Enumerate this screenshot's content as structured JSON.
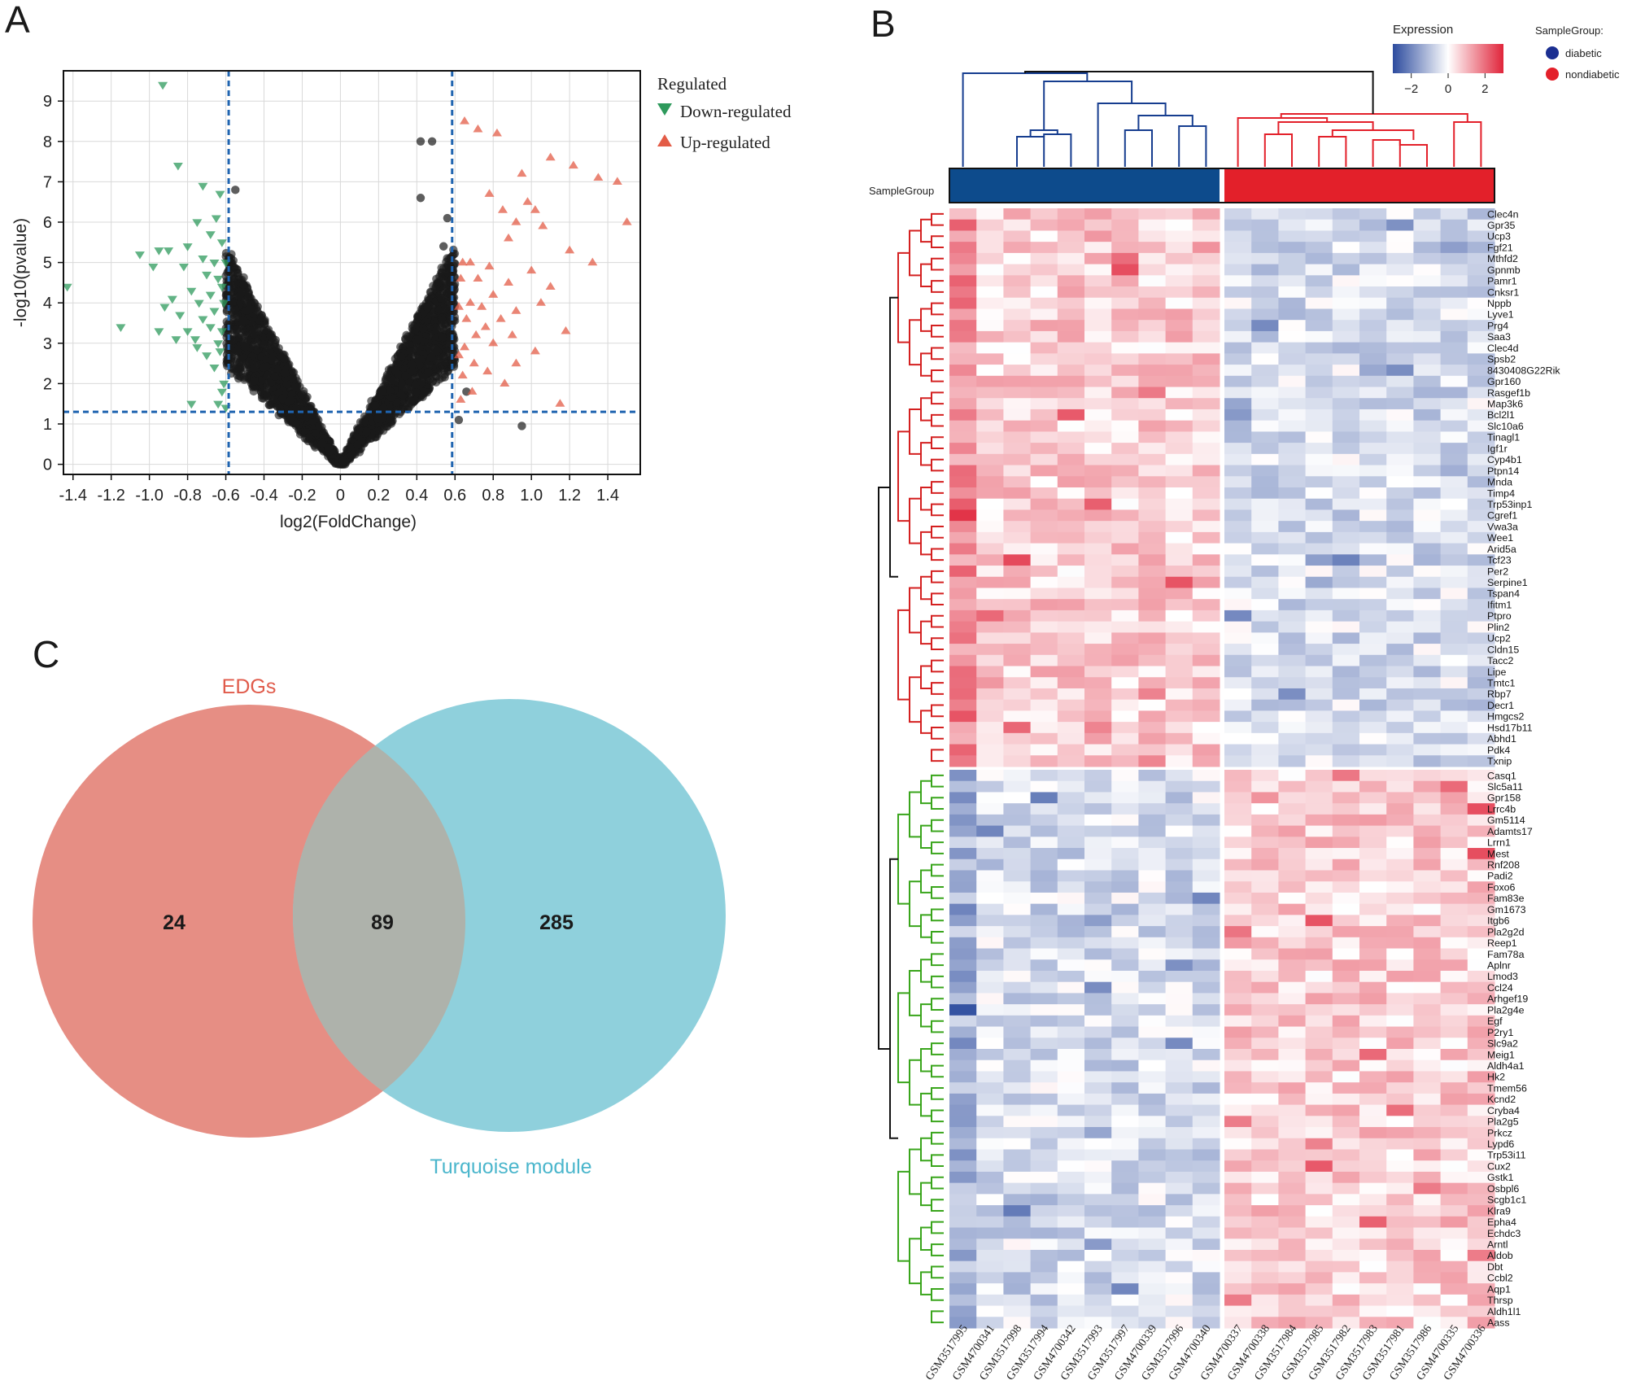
{
  "panels": {
    "a": "A",
    "b": "B",
    "c": "C"
  },
  "colors": {
    "down": "#2e9a5c",
    "up": "#e35c47",
    "ns": "#1a1a1a",
    "threshold": "#1f64b0",
    "diabetic": "#1b2f91",
    "nondiabetic": "#e3202a",
    "venn_edg": "#e68e84",
    "venn_turq": "#8fd0dc",
    "venn_overlap": "#aeb2ab",
    "venn_edg_label": "#e05b4b",
    "venn_turq_label": "#4bb6cc",
    "up_dendro": "#d42020",
    "down_dendro": "#39a51b"
  },
  "volcano": {
    "chart_data": {
      "type": "scatter",
      "xlabel": "log2(FoldChange)",
      "ylabel": "-log10(pvalue)",
      "xlim": [
        -1.45,
        1.57
      ],
      "ylim": [
        -0.25,
        9.75
      ],
      "xticks": [
        -1.4,
        -1.2,
        -1.0,
        -0.8,
        -0.6,
        -0.4,
        -0.2,
        0,
        0.2,
        0.4,
        0.6,
        0.8,
        1.0,
        1.2,
        1.4
      ],
      "xtick_labels": [
        "-1.4",
        "-1.2",
        "-1.0",
        "-0.8",
        "-0.6",
        "-0.4",
        "-0.2",
        "0",
        "0.2",
        "0.4",
        "0.6",
        "0.8",
        "1.0",
        "1.2",
        "1.4"
      ],
      "yticks": [
        0,
        1,
        2,
        3,
        4,
        5,
        6,
        7,
        8,
        9
      ],
      "ytick_labels": [
        "0",
        "1",
        "2",
        "3",
        "4",
        "5",
        "6",
        "7",
        "8",
        "9"
      ],
      "thresholds": {
        "log2fc": [
          -0.585,
          0.585
        ],
        "neg_log10_p": 1.3
      },
      "legend": {
        "title": "Regulated",
        "items": [
          "Down-regulated",
          "Up-regulated"
        ]
      },
      "series": [
        {
          "name": "Down-regulated",
          "marker": "triangle-down",
          "points": [
            [
              -1.43,
              4.4
            ],
            [
              -0.93,
              9.4
            ],
            [
              -0.85,
              7.4
            ],
            [
              -0.72,
              6.9
            ],
            [
              -0.63,
              6.7
            ],
            [
              -0.65,
              6.1
            ],
            [
              -0.75,
              6.0
            ],
            [
              -0.68,
              5.7
            ],
            [
              -0.62,
              5.5
            ],
            [
              -0.8,
              5.4
            ],
            [
              -0.9,
              5.3
            ],
            [
              -0.95,
              5.3
            ],
            [
              -1.05,
              5.2
            ],
            [
              -0.72,
              5.1
            ],
            [
              -0.66,
              5.0
            ],
            [
              -0.6,
              5.0
            ],
            [
              -0.98,
              4.9
            ],
            [
              -0.82,
              4.9
            ],
            [
              -0.7,
              4.7
            ],
            [
              -0.64,
              4.6
            ],
            [
              -0.62,
              4.4
            ],
            [
              -0.78,
              4.3
            ],
            [
              -0.68,
              4.2
            ],
            [
              -0.88,
              4.1
            ],
            [
              -0.74,
              4.0
            ],
            [
              -0.61,
              4.0
            ],
            [
              -0.92,
              3.9
            ],
            [
              -0.66,
              3.8
            ],
            [
              -0.84,
              3.7
            ],
            [
              -0.72,
              3.6
            ],
            [
              -1.15,
              3.4
            ],
            [
              -0.95,
              3.3
            ],
            [
              -0.8,
              3.3
            ],
            [
              -0.68,
              3.4
            ],
            [
              -0.62,
              3.3
            ],
            [
              -0.86,
              3.1
            ],
            [
              -0.76,
              3.1
            ],
            [
              -0.64,
              3.0
            ],
            [
              -0.75,
              2.9
            ],
            [
              -0.7,
              2.7
            ],
            [
              -0.63,
              2.8
            ],
            [
              -0.66,
              2.4
            ],
            [
              -0.61,
              2.0
            ],
            [
              -0.62,
              1.8
            ],
            [
              -0.78,
              1.5
            ],
            [
              -0.64,
              1.5
            ],
            [
              -0.6,
              1.4
            ]
          ]
        },
        {
          "name": "Up-regulated",
          "marker": "triangle-up",
          "points": [
            [
              0.65,
              8.5
            ],
            [
              0.72,
              8.3
            ],
            [
              0.82,
              8.2
            ],
            [
              1.1,
              7.6
            ],
            [
              1.22,
              7.4
            ],
            [
              0.95,
              7.2
            ],
            [
              1.35,
              7.1
            ],
            [
              1.45,
              7.0
            ],
            [
              0.78,
              6.7
            ],
            [
              0.98,
              6.5
            ],
            [
              1.02,
              6.3
            ],
            [
              0.85,
              6.3
            ],
            [
              1.5,
              6.0
            ],
            [
              0.92,
              6.0
            ],
            [
              1.06,
              5.9
            ],
            [
              0.88,
              5.6
            ],
            [
              1.2,
              5.3
            ],
            [
              0.68,
              5.0
            ],
            [
              0.64,
              5.0
            ],
            [
              0.78,
              4.9
            ],
            [
              1.0,
              4.8
            ],
            [
              1.32,
              5.0
            ],
            [
              0.72,
              4.6
            ],
            [
              0.63,
              4.6
            ],
            [
              0.88,
              4.5
            ],
            [
              1.1,
              4.4
            ],
            [
              0.8,
              4.2
            ],
            [
              0.68,
              4.0
            ],
            [
              1.05,
              4.0
            ],
            [
              0.62,
              3.9
            ],
            [
              0.74,
              3.9
            ],
            [
              0.92,
              3.8
            ],
            [
              0.84,
              3.6
            ],
            [
              0.66,
              3.6
            ],
            [
              0.76,
              3.4
            ],
            [
              1.18,
              3.3
            ],
            [
              0.9,
              3.2
            ],
            [
              0.71,
              3.2
            ],
            [
              0.8,
              3.0
            ],
            [
              0.65,
              2.9
            ],
            [
              1.02,
              2.8
            ],
            [
              0.62,
              2.7
            ],
            [
              0.7,
              2.5
            ],
            [
              0.92,
              2.5
            ],
            [
              0.77,
              2.3
            ],
            [
              0.64,
              2.2
            ],
            [
              0.86,
              2.0
            ],
            [
              0.69,
              1.8
            ],
            [
              0.63,
              1.6
            ],
            [
              1.15,
              1.5
            ]
          ]
        }
      ]
    }
  },
  "heatmap": {
    "chart_data": {
      "type": "heatmap",
      "color_scale": {
        "title": "Expression",
        "ticks": [
          -2,
          0,
          2
        ],
        "tick_labels": [
          "−2",
          "0",
          "2"
        ],
        "low": "#2c4b9e",
        "mid": "#ffffff",
        "high": "#e0243a",
        "range": [
          -3,
          3
        ]
      },
      "annotation": {
        "label": "SampleGroup",
        "legend_title": "SampleGroup:",
        "groups": [
          "diabetic",
          "nondiabetic"
        ]
      },
      "samples": [
        "GSM3517995",
        "GSM4700341",
        "GSM3517998",
        "GSM3517994",
        "GSM4700342",
        "GSM3517993",
        "GSM3517997",
        "GSM4700339",
        "GSM3517996",
        "GSM4700340",
        "GSM4700337",
        "GSM4700338",
        "GSM3517984",
        "GSM3517985",
        "GSM3517982",
        "GSM3517983",
        "GSM3517981",
        "GSM3517986",
        "GSM4700335",
        "GSM4700336"
      ],
      "sample_groups": [
        "diabetic",
        "diabetic",
        "diabetic",
        "diabetic",
        "diabetic",
        "diabetic",
        "diabetic",
        "diabetic",
        "diabetic",
        "diabetic",
        "nondiabetic",
        "nondiabetic",
        "nondiabetic",
        "nondiabetic",
        "nondiabetic",
        "nondiabetic",
        "nondiabetic",
        "nondiabetic",
        "nondiabetic",
        "nondiabetic"
      ],
      "up_genes": [
        "Clec4n",
        "Gpr35",
        "Ucp3",
        "Fgf21",
        "Mthfd2",
        "Gpnmb",
        "Pamr1",
        "Cnksr1",
        "Nppb",
        "Lyve1",
        "Prg4",
        "Saa3",
        "Clec4d",
        "Spsb2",
        "8430408G22Rik",
        "Gpr160",
        "Rasgef1b",
        "Map3k6",
        "Bcl2l1",
        "Slc10a6",
        "Tinagl1",
        "Igf1r",
        "Cyp4b1",
        "Ptpn14",
        "Mnda",
        "Timp4",
        "Trp53inp1",
        "Cgref1",
        "Vwa3a",
        "Wee1",
        "Arid5a",
        "Tcf23",
        "Per2",
        "Serpine1",
        "Tspan4",
        "Ifitm1",
        "Ptpro",
        "Plin2",
        "Ucp2",
        "Cldn15",
        "Tacc2",
        "Lipe",
        "Tmtc1",
        "Rbp7",
        "Decr1",
        "Hmgcs2",
        "Hsd17b11",
        "Abhd1",
        "Pdk4",
        "Txnip"
      ],
      "down_genes": [
        "Casq1",
        "Slc5a11",
        "Gpr158",
        "Lrrc4b",
        "Gm5114",
        "Adamts17",
        "Lrrn1",
        "Mest",
        "Rnf208",
        "Padi2",
        "Foxo6",
        "Fam83e",
        "Gm1673",
        "Itgb6",
        "Pla2g2d",
        "Reep1",
        "Fam78a",
        "Aplnr",
        "Lmod3",
        "Ccl24",
        "Arhgef19",
        "Pla2g4e",
        "Egf",
        "P2ry1",
        "Slc9a2",
        "Meig1",
        "Aldh4a1",
        "Hk2",
        "Tmem56",
        "Kcnd2",
        "Cryba4",
        "Pla2g5",
        "Prkcz",
        "Lypd6",
        "Trp53i11",
        "Cux2",
        "Gstk1",
        "Osbpl6",
        "Scgb1c1",
        "Klra9",
        "Epha4",
        "Echdc3",
        "Arntl",
        "Aldob",
        "Dbt",
        "Ccbl2",
        "Aqp1",
        "Thrsp",
        "Aldh1l1",
        "Aass"
      ]
    }
  },
  "venn": {
    "chart_data": {
      "type": "venn",
      "sets": [
        {
          "name": "EDGs",
          "only": 24
        },
        {
          "name": "Turquoise module",
          "only": 285
        }
      ],
      "overlap": 89
    },
    "labels": {
      "left": "EDGs",
      "right": "Turquoise module",
      "left_count": "24",
      "overlap_count": "89",
      "right_count": "285"
    }
  }
}
